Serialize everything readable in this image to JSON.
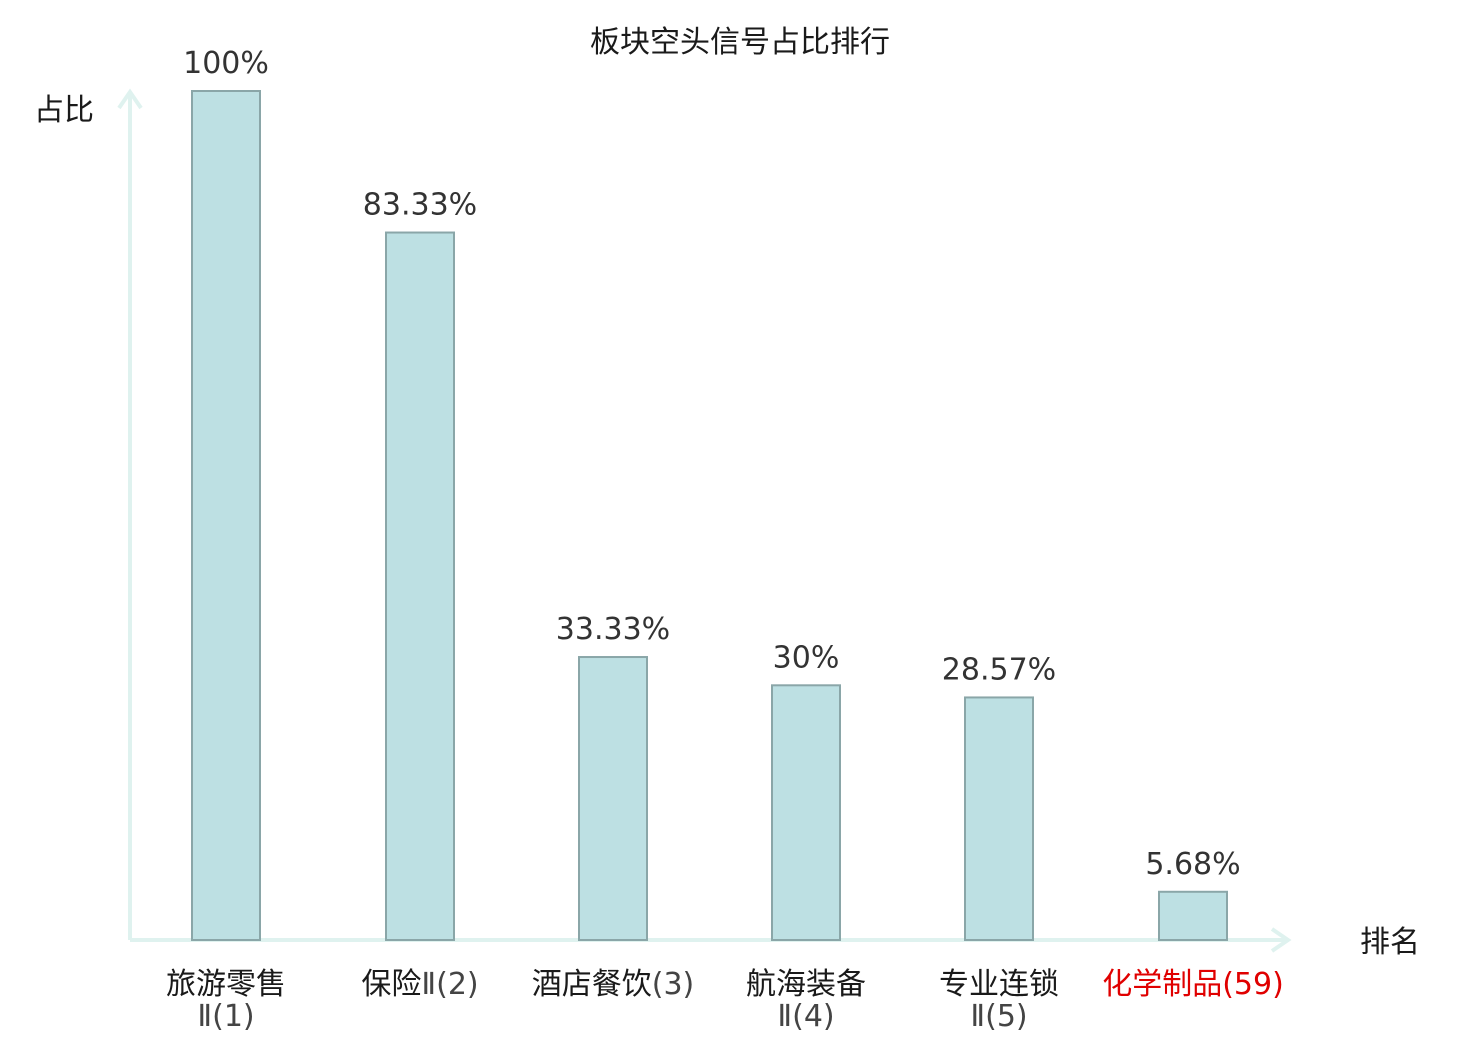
{
  "chart_data": {
    "type": "bar",
    "title": "板块空头信号占比排行",
    "ylabel": "占比",
    "xlabel": "排名",
    "ylim": [
      0,
      100
    ],
    "categories": [
      {
        "name": "旅游零售",
        "rank_text": "Ⅱ(1)",
        "highlight": false
      },
      {
        "name": "保险",
        "rank_text": "Ⅱ(2)",
        "highlight": false
      },
      {
        "name": "酒店餐饮",
        "rank_text": "(3)",
        "highlight": false
      },
      {
        "name": "航海装备",
        "rank_text": "Ⅱ(4)",
        "highlight": false
      },
      {
        "name": "专业连锁",
        "rank_text": "Ⅱ(5)",
        "highlight": false
      },
      {
        "name": "化学制品",
        "rank_text": "(59)",
        "highlight": true
      }
    ],
    "values": [
      100,
      83.33,
      33.33,
      30,
      28.57,
      5.68
    ],
    "value_labels": [
      "100%",
      "83.33%",
      "33.33%",
      "30%",
      "28.57%",
      "5.68%"
    ],
    "colors": {
      "bar_fill": "#bde0e3",
      "bar_stroke": "#8aa6a8",
      "axis": "#dff2ef",
      "highlight": "#e00000"
    },
    "grid": false,
    "legend": "none"
  }
}
